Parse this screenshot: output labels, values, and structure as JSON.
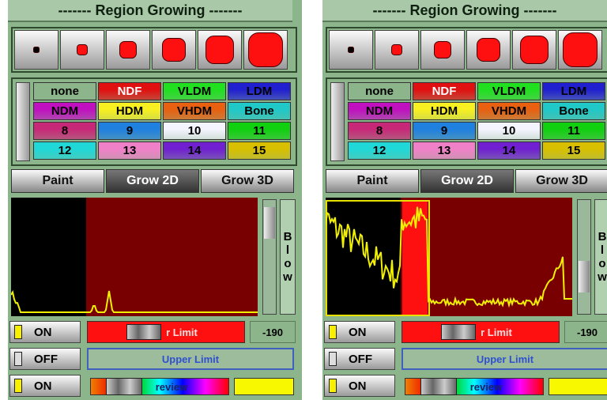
{
  "panels": [
    {
      "title": "------- Region Growing -------",
      "labels": [
        "none",
        "NDF",
        "VLDM",
        "LDM",
        "NDM",
        "HDM",
        "VHDM",
        "Bone",
        "8",
        "9",
        "10",
        "11",
        "12",
        "13",
        "14",
        "15"
      ],
      "tabs": [
        "Paint",
        "Grow 2D",
        "Grow 3D"
      ],
      "side_button": [
        "B",
        "l",
        "o",
        "w"
      ],
      "rows": [
        {
          "toggle": "ON",
          "slider_label": "r Limit",
          "value": "-190"
        },
        {
          "toggle": "OFF",
          "slider_label": "Upper Limit"
        },
        {
          "toggle": "ON",
          "slider_label": "review"
        }
      ]
    },
    {
      "title": "------- Region Growing -------",
      "labels": [
        "none",
        "NDF",
        "VLDM",
        "LDM",
        "NDM",
        "HDM",
        "VHDM",
        "Bone",
        "8",
        "9",
        "10",
        "11",
        "12",
        "13",
        "14",
        "15"
      ],
      "tabs": [
        "Paint",
        "Grow 2D",
        "Grow 3D"
      ],
      "side_button": [
        "B",
        "l",
        "o",
        "w"
      ],
      "rows": [
        {
          "toggle": "ON",
          "slider_label": "r Limit",
          "value": "-190"
        },
        {
          "toggle": "OFF",
          "slider_label": "Upper Limit"
        },
        {
          "toggle": "ON",
          "slider_label": "review"
        }
      ]
    }
  ]
}
